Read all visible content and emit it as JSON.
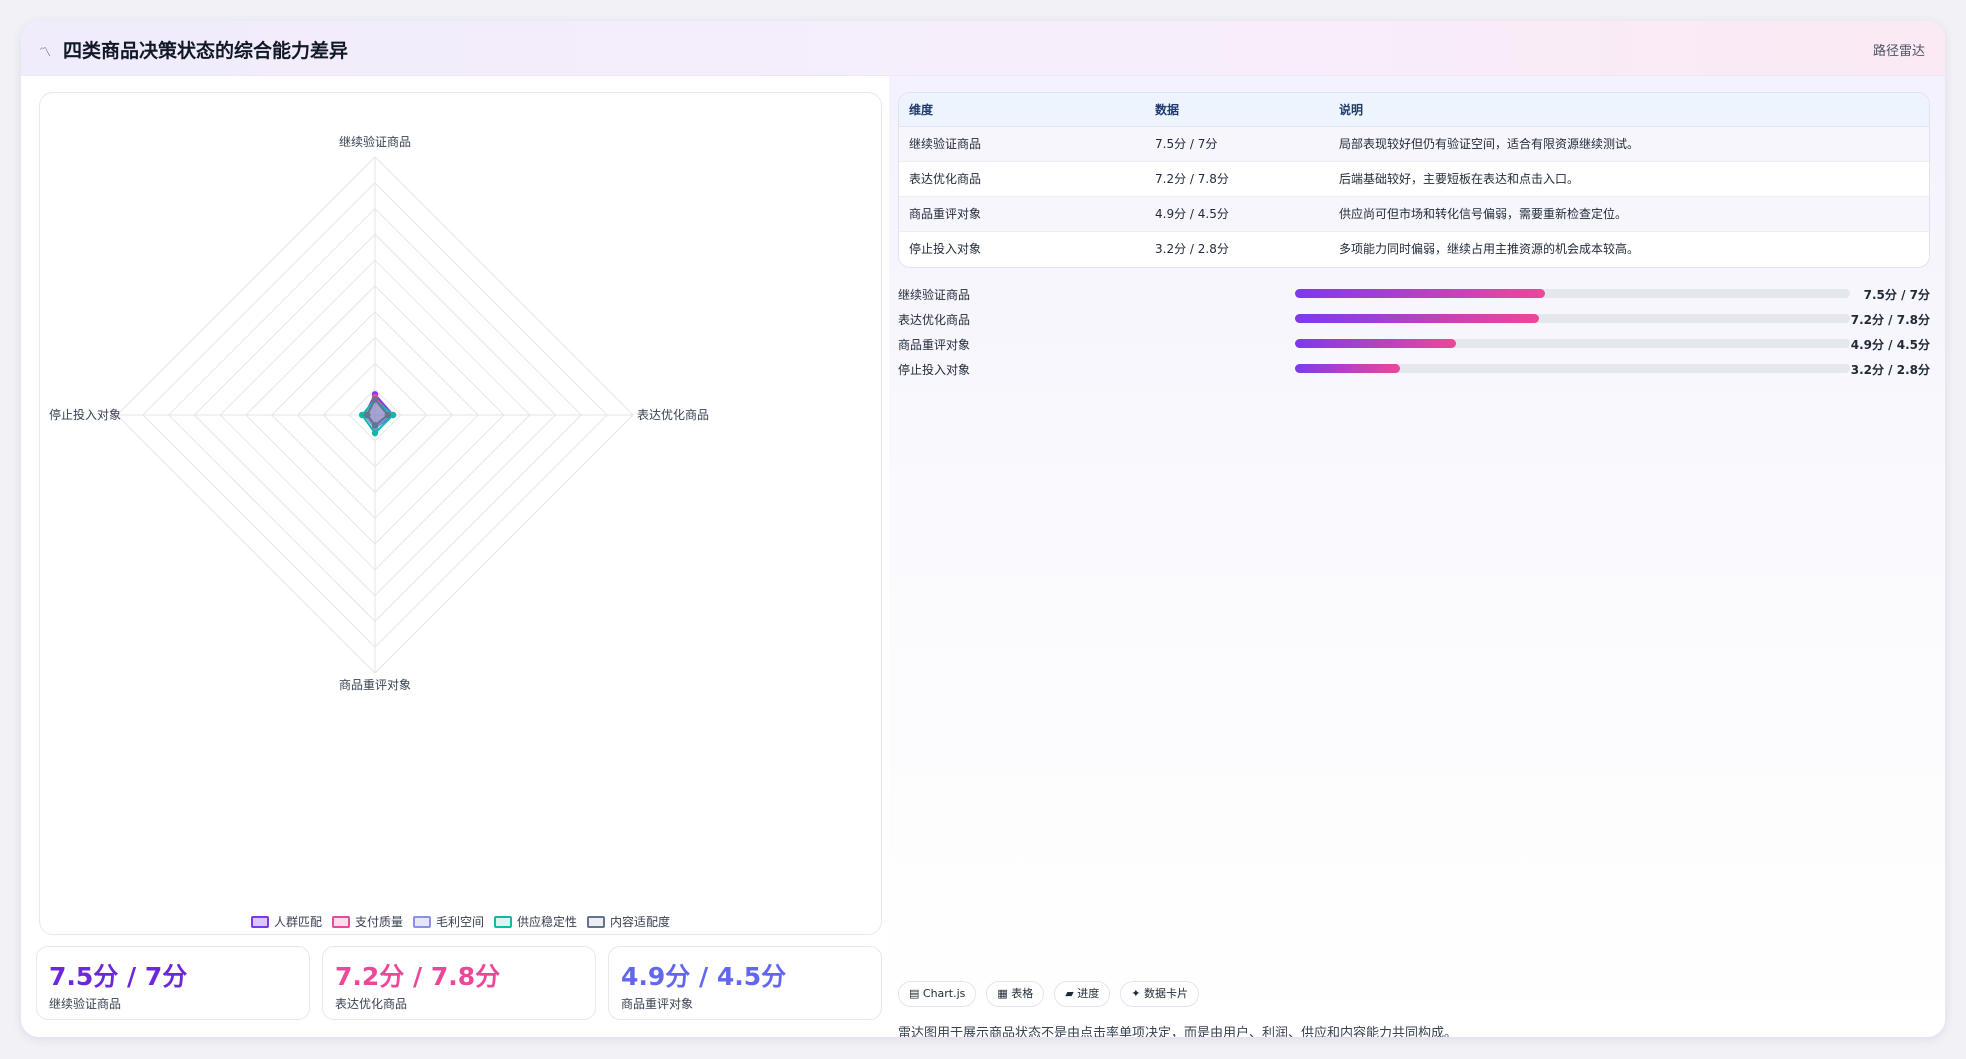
{
  "header": {
    "icon": "〽",
    "title": "四类商品决策状态的综合能力差异",
    "tag": "路径雷达"
  },
  "chart_data": {
    "type": "radar",
    "axes": [
      "继续验证商品",
      "表达优化商品",
      "商品重评对象",
      "停止投入对象"
    ],
    "max": 100,
    "rings": 10,
    "series": [
      {
        "name": "人群匹配",
        "color": "#7c3aed",
        "fill": "rgba(124,58,237,0.28)",
        "values": [
          8,
          7,
          5,
          4
        ]
      },
      {
        "name": "支付质量",
        "color": "#ec4899",
        "fill": "rgba(236,72,153,0.18)",
        "values": [
          7,
          6,
          4,
          3
        ]
      },
      {
        "name": "毛利空间",
        "color": "#8b8fe8",
        "fill": "rgba(139,143,232,0.22)",
        "values": [
          6,
          6,
          5,
          4
        ]
      },
      {
        "name": "供应稳定性",
        "color": "#14b8a6",
        "fill": "rgba(20,184,166,0.15)",
        "values": [
          6,
          7,
          7,
          5
        ]
      },
      {
        "name": "内容适配度",
        "color": "#64748b",
        "fill": "rgba(100,116,139,0.12)",
        "values": [
          6,
          5,
          4,
          3
        ]
      }
    ]
  },
  "kpis": [
    {
      "value": "7.5分 / 7分",
      "label": "继续验证商品",
      "color": "#6d28d9"
    },
    {
      "value": "7.2分 / 7.8分",
      "label": "表达优化商品",
      "color": "#ec4899"
    },
    {
      "value": "4.9分 / 4.5分",
      "label": "商品重评对象",
      "color": "#6366f1"
    }
  ],
  "table": {
    "headers": [
      "维度",
      "数据",
      "说明"
    ],
    "rows": [
      [
        "继续验证商品",
        "7.5分 / 7分",
        "局部表现较好但仍有验证空间，适合有限资源继续测试。"
      ],
      [
        "表达优化商品",
        "7.2分 / 7.8分",
        "后端基础较好，主要短板在表达和点击入口。"
      ],
      [
        "商品重评对象",
        "4.9分 / 4.5分",
        "供应尚可但市场和转化信号偏弱，需要重新检查定位。"
      ],
      [
        "停止投入对象",
        "3.2分 / 2.8分",
        "多项能力同时偏弱，继续占用主推资源的机会成本较高。"
      ]
    ]
  },
  "progress": [
    {
      "label": "继续验证商品",
      "value": "7.5分 / 7分",
      "fraction": 0.45
    },
    {
      "label": "表达优化商品",
      "value": "7.2分 / 7.8分",
      "fraction": 0.44
    },
    {
      "label": "商品重评对象",
      "value": "4.9分 / 4.5分",
      "fraction": 0.29
    },
    {
      "label": "停止投入对象",
      "value": "3.2分 / 2.8分",
      "fraction": 0.19
    }
  ],
  "chips": [
    "▤ Chart.js",
    "▦ 表格",
    "▰ 进度",
    "✦ 数据卡片"
  ],
  "footnote": "雷达图用于展示商品状态不是由点击率单项决定，而是由用户、利润、供应和内容能力共同构成。"
}
